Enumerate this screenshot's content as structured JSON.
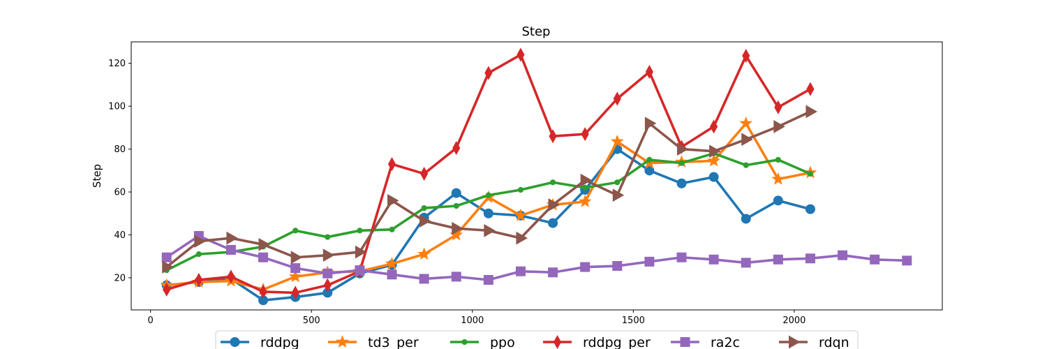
{
  "chart_data": {
    "type": "line",
    "title": "Step",
    "xlabel": "",
    "ylabel": "Step",
    "xlim": [
      -60,
      2460
    ],
    "ylim": [
      5,
      130
    ],
    "xticks": [
      0,
      500,
      1000,
      1500,
      2000
    ],
    "yticks": [
      20,
      40,
      60,
      80,
      100,
      120
    ],
    "grid": false,
    "legend_position": "bottom-center",
    "series": [
      {
        "name": "rddpg",
        "color": "#1f77b4",
        "marker": "circle",
        "x": [
          50,
          150,
          250,
          350,
          450,
          550,
          650,
          750,
          850,
          950,
          1050,
          1150,
          1250,
          1350,
          1450,
          1550,
          1650,
          1750,
          1850,
          1950,
          2050
        ],
        "y": [
          16.5,
          18,
          19.5,
          9.5,
          11,
          13,
          22,
          26,
          48,
          59.5,
          50,
          49,
          45.5,
          61,
          80,
          70,
          64,
          67,
          47.5,
          56,
          52
        ]
      },
      {
        "name": "td3_per",
        "color": "#ff7f0e",
        "marker": "star",
        "x": [
          50,
          150,
          250,
          350,
          450,
          550,
          650,
          750,
          850,
          950,
          1050,
          1150,
          1250,
          1350,
          1450,
          1550,
          1650,
          1750,
          1850,
          1950,
          2050
        ],
        "y": [
          16.5,
          18,
          18.5,
          14.5,
          20.5,
          22.5,
          23,
          26.5,
          31,
          40,
          57.5,
          49,
          54,
          55.5,
          83.5,
          73.5,
          74,
          74.5,
          92,
          66,
          69
        ]
      },
      {
        "name": "ppo",
        "color": "#2ca02c",
        "marker": "dot",
        "x": [
          50,
          150,
          250,
          350,
          450,
          550,
          650,
          750,
          850,
          950,
          1050,
          1150,
          1250,
          1350,
          1450,
          1550,
          1650,
          1750,
          1850,
          1950,
          2050
        ],
        "y": [
          23.5,
          31,
          32,
          34.5,
          42,
          39,
          42,
          42.5,
          52.5,
          53.5,
          58.5,
          61,
          64.5,
          62,
          64.5,
          75,
          73.5,
          78,
          72.5,
          75,
          68.5
        ]
      },
      {
        "name": "rddpg_per",
        "color": "#d62728",
        "marker": "thin_diamond",
        "x": [
          50,
          150,
          250,
          350,
          450,
          550,
          650,
          750,
          850,
          950,
          1050,
          1150,
          1250,
          1350,
          1450,
          1550,
          1650,
          1750,
          1850,
          1950,
          2050
        ],
        "y": [
          14.5,
          19,
          20.5,
          13.5,
          13,
          16.5,
          23,
          73,
          68.5,
          80.5,
          115.5,
          124,
          86,
          87,
          103.5,
          116,
          81,
          90.5,
          123.5,
          99.5,
          108
        ]
      },
      {
        "name": "ra2c",
        "color": "#9467bd",
        "marker": "square",
        "x": [
          50,
          150,
          250,
          350,
          450,
          550,
          650,
          750,
          850,
          950,
          1050,
          1150,
          1250,
          1350,
          1450,
          1550,
          1650,
          1750,
          1850,
          1950,
          2050,
          2150,
          2250,
          2350
        ],
        "y": [
          29.5,
          39.5,
          33,
          29.5,
          24.5,
          22,
          23.5,
          21.5,
          19.5,
          20.5,
          19,
          23,
          22.5,
          25,
          25.5,
          27.5,
          29.5,
          28.5,
          27,
          28.5,
          29,
          30.5,
          28.5,
          28
        ]
      },
      {
        "name": "rdqn",
        "color": "#8c564b",
        "marker": "triangle_right",
        "x": [
          50,
          150,
          250,
          350,
          450,
          550,
          650,
          750,
          850,
          950,
          1050,
          1150,
          1250,
          1350,
          1450,
          1550,
          1650,
          1750,
          1850,
          1950,
          2050
        ],
        "y": [
          25,
          37,
          38.5,
          35.5,
          29.5,
          30.5,
          32,
          56,
          46.5,
          43,
          42,
          38.5,
          54,
          65.5,
          58.5,
          92,
          80,
          79,
          84.5,
          90.5,
          97.5
        ]
      }
    ]
  }
}
